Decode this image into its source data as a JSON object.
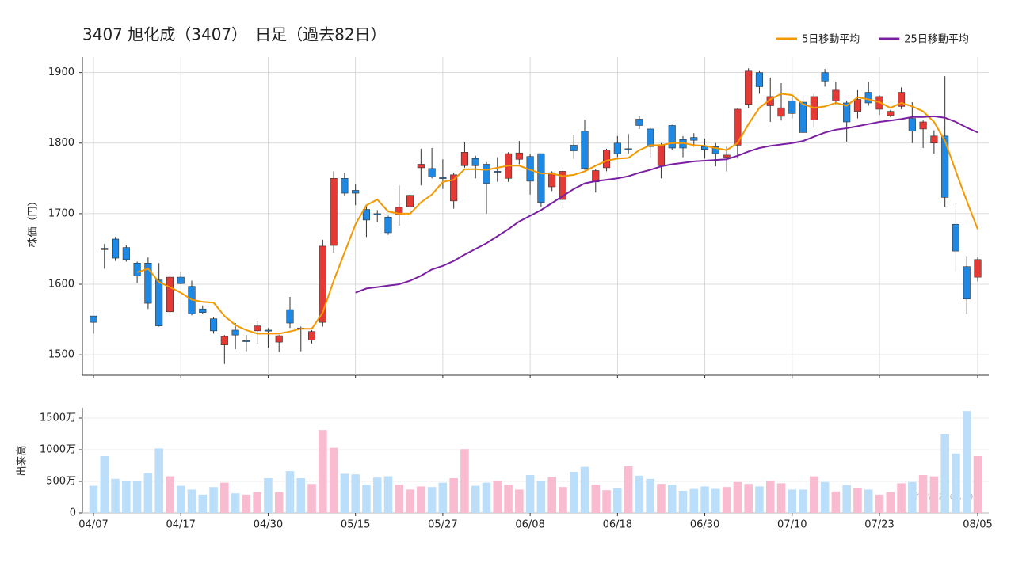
{
  "chart_data": {
    "type": "candlestick",
    "title": "3407 旭化成（3407）　日足（過去82日）",
    "y_label": "株価（円）",
    "categories": [
      "04/07",
      null,
      null,
      null,
      null,
      null,
      null,
      null,
      "04/17",
      null,
      null,
      null,
      null,
      null,
      null,
      null,
      "04/30",
      null,
      null,
      null,
      null,
      null,
      null,
      null,
      "05/15",
      null,
      null,
      null,
      null,
      null,
      null,
      null,
      "05/27",
      null,
      null,
      null,
      null,
      null,
      null,
      null,
      "06/08",
      null,
      null,
      null,
      null,
      null,
      null,
      null,
      "06/18",
      null,
      null,
      null,
      null,
      null,
      null,
      null,
      "06/30",
      null,
      null,
      null,
      null,
      null,
      null,
      null,
      "07/10",
      null,
      null,
      null,
      null,
      null,
      null,
      null,
      "07/23",
      null,
      null,
      null,
      null,
      null,
      null,
      null,
      null,
      "08/05"
    ],
    "open": [
      1555,
      1651,
      1664,
      1652,
      1630,
      1630,
      1606,
      1561,
      1610,
      1597,
      1565,
      1551,
      1514,
      1535,
      1520,
      1534,
      1535,
      1518,
      1564,
      1538,
      1521,
      1546,
      1655,
      1750,
      1733,
      1706,
      1700,
      1695,
      1698,
      1710,
      1765,
      1764,
      1751,
      1718,
      1768,
      1778,
      1770,
      1760,
      1750,
      1777,
      1781,
      1785,
      1738,
      1720,
      1797,
      1817,
      1745,
      1765,
      1800,
      1792,
      1834,
      1820,
      1768,
      1825,
      1805,
      1808,
      1795,
      1795,
      1780,
      1797,
      1855,
      1900,
      1853,
      1838,
      1860,
      1858,
      1833,
      1900,
      1860,
      1857,
      1845,
      1872,
      1848,
      1839,
      1852,
      1835,
      1820,
      1800,
      1810,
      1685,
      1625,
      1610
    ],
    "high": [
      1555,
      1657,
      1667,
      1655,
      1632,
      1638,
      1630,
      1617,
      1617,
      1605,
      1570,
      1553,
      1528,
      1545,
      1528,
      1548,
      1538,
      1528,
      1582,
      1540,
      1535,
      1663,
      1760,
      1758,
      1742,
      1712,
      1705,
      1697,
      1740,
      1730,
      1792,
      1793,
      1777,
      1758,
      1802,
      1782,
      1773,
      1780,
      1787,
      1803,
      1785,
      1785,
      1760,
      1762,
      1812,
      1833,
      1763,
      1792,
      1810,
      1813,
      1838,
      1822,
      1800,
      1826,
      1810,
      1814,
      1806,
      1800,
      1795,
      1850,
      1906,
      1902,
      1893,
      1885,
      1868,
      1868,
      1870,
      1905,
      1887,
      1860,
      1875,
      1887,
      1868,
      1847,
      1879,
      1858,
      1832,
      1818,
      1895,
      1715,
      1640,
      1638
    ],
    "low": [
      1530,
      1622,
      1633,
      1632,
      1602,
      1565,
      1540,
      1560,
      1600,
      1556,
      1558,
      1530,
      1487,
      1508,
      1505,
      1515,
      1510,
      1504,
      1538,
      1505,
      1516,
      1540,
      1645,
      1725,
      1712,
      1667,
      1688,
      1670,
      1683,
      1697,
      1740,
      1750,
      1735,
      1707,
      1765,
      1750,
      1700,
      1745,
      1745,
      1770,
      1727,
      1710,
      1732,
      1707,
      1778,
      1762,
      1730,
      1760,
      1780,
      1785,
      1820,
      1780,
      1750,
      1790,
      1780,
      1795,
      1778,
      1767,
      1760,
      1778,
      1850,
      1870,
      1830,
      1832,
      1835,
      1815,
      1822,
      1880,
      1855,
      1802,
      1835,
      1853,
      1840,
      1837,
      1848,
      1800,
      1793,
      1785,
      1710,
      1617,
      1558,
      1604
    ],
    "close": [
      1546,
      1649,
      1637,
      1635,
      1612,
      1573,
      1541,
      1610,
      1601,
      1558,
      1560,
      1534,
      1526,
      1528,
      1520,
      1541,
      1534,
      1527,
      1545,
      1537,
      1533,
      1654,
      1750,
      1729,
      1729,
      1691,
      1699,
      1673,
      1709,
      1726,
      1770,
      1752,
      1750,
      1755,
      1787,
      1768,
      1743,
      1760,
      1785,
      1786,
      1746,
      1716,
      1758,
      1760,
      1789,
      1764,
      1761,
      1790,
      1785,
      1792,
      1825,
      1795,
      1797,
      1793,
      1793,
      1804,
      1791,
      1785,
      1783,
      1848,
      1902,
      1880,
      1866,
      1850,
      1842,
      1815,
      1866,
      1888,
      1875,
      1830,
      1862,
      1857,
      1866,
      1845,
      1872,
      1817,
      1830,
      1810,
      1723,
      1647,
      1579,
      1635
    ],
    "up_color": "#e53935",
    "down_color": "#1e88e5",
    "ylim": [
      1471,
      1922
    ],
    "yticks": [
      1500,
      1600,
      1700,
      1800,
      1900
    ],
    "grid": true,
    "legend": "top-right",
    "series": [
      {
        "name": "5日移動平均",
        "color": "#f39800",
        "values": [
          null,
          null,
          null,
          null,
          1617,
          1622,
          1603,
          1596,
          1588,
          1578,
          1575,
          1574,
          1555,
          1542,
          1535,
          1530,
          1530,
          1530,
          1533,
          1537,
          1537,
          1560,
          1605,
          1645,
          1685,
          1712,
          1720,
          1703,
          1700,
          1700,
          1716,
          1727,
          1745,
          1748,
          1763,
          1763,
          1762,
          1765,
          1768,
          1768,
          1762,
          1757,
          1757,
          1753,
          1755,
          1760,
          1768,
          1775,
          1778,
          1779,
          1790,
          1797,
          1797,
          1800,
          1800,
          1797,
          1796,
          1793,
          1790,
          1800,
          1827,
          1850,
          1862,
          1870,
          1868,
          1855,
          1850,
          1852,
          1857,
          1853,
          1865,
          1862,
          1858,
          1850,
          1857,
          1852,
          1845,
          1830,
          1803,
          1760,
          1718,
          1678
        ]
      },
      {
        "name": "25日移動平均",
        "color": "#7b1fa2",
        "values": [
          null,
          null,
          null,
          null,
          null,
          null,
          null,
          null,
          null,
          null,
          null,
          null,
          null,
          null,
          null,
          null,
          null,
          null,
          null,
          null,
          null,
          null,
          null,
          null,
          1588,
          1594,
          1596,
          1598,
          1600,
          1605,
          1612,
          1621,
          1626,
          1633,
          1642,
          1650,
          1658,
          1668,
          1678,
          1689,
          1697,
          1705,
          1715,
          1725,
          1735,
          1743,
          1746,
          1748,
          1750,
          1753,
          1758,
          1762,
          1767,
          1770,
          1772,
          1774,
          1775,
          1776,
          1777,
          1782,
          1788,
          1793,
          1796,
          1798,
          1800,
          1803,
          1809,
          1815,
          1819,
          1821,
          1824,
          1827,
          1830,
          1832,
          1834,
          1837,
          1837,
          1838,
          1836,
          1830,
          1822,
          1815
        ]
      }
    ],
    "volume": {
      "label": "出来高",
      "values": [
        4300000,
        9000000,
        5400000,
        5000000,
        5000000,
        6300000,
        10200000,
        5800000,
        4300000,
        3700000,
        2900000,
        4100000,
        4800000,
        3100000,
        2900000,
        3300000,
        5500000,
        3300000,
        6600000,
        5500000,
        4600000,
        13100000,
        10300000,
        6200000,
        6100000,
        4500000,
        5600000,
        5800000,
        4500000,
        3700000,
        4200000,
        4100000,
        4800000,
        5500000,
        10100000,
        4300000,
        4800000,
        5100000,
        4500000,
        3700000,
        6000000,
        5100000,
        5700000,
        4100000,
        6500000,
        7300000,
        4500000,
        3600000,
        3900000,
        7400000,
        5900000,
        5400000,
        4600000,
        4500000,
        3500000,
        3800000,
        4200000,
        3800000,
        4100000,
        4900000,
        4600000,
        4200000,
        5100000,
        4700000,
        3700000,
        3700000,
        5800000,
        4900000,
        3400000,
        4400000,
        4000000,
        3700000,
        2900000,
        3300000,
        4700000,
        4900000,
        6000000,
        5800000,
        12500000,
        9400000,
        16100000,
        9000000
      ],
      "ylim": [
        0,
        16625000
      ],
      "yticks": [
        0,
        {
          "value": 5000000,
          "label": "500万"
        },
        {
          "value": 10000000,
          "label": "1000万"
        },
        {
          "value": 15000000,
          "label": "1500万"
        }
      ],
      "up_color": "#f8bbd0",
      "down_color": "#bbdefb"
    },
    "watermark": "show-zeet.com"
  }
}
